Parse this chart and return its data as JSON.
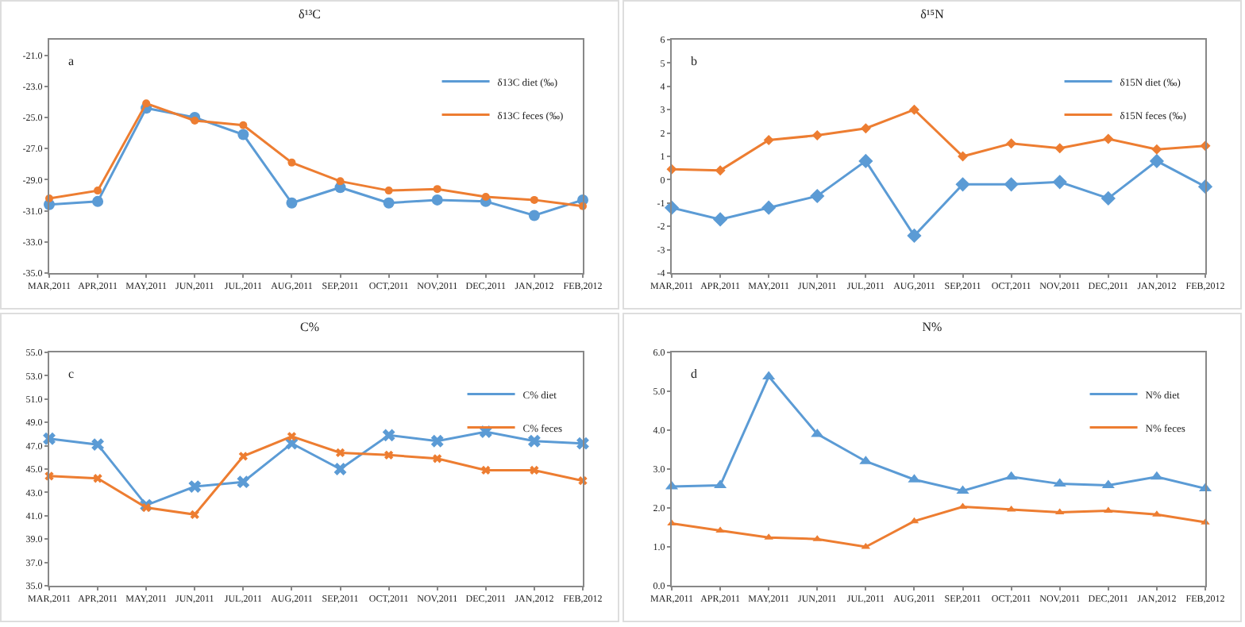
{
  "chart_data": [
    {
      "type": "line",
      "title": "δ¹³C",
      "annotations": [
        "a"
      ],
      "categories": [
        "MAR,2011",
        "APR,2011",
        "MAY,2011",
        "JUN,2011",
        "JUL,2011",
        "AUG,2011",
        "SEP,2011",
        "OCT,2011",
        "NOV,2011",
        "DEC,2011",
        "JAN,2012",
        "FEB,2012"
      ],
      "series": [
        {
          "name": "δ13C diet (‰)",
          "color": "#5b9bd5",
          "values": [
            -30.6,
            -30.4,
            -24.4,
            -25.0,
            -26.1,
            -30.5,
            -29.5,
            -30.5,
            -30.3,
            -30.4,
            -31.3,
            -30.3
          ]
        },
        {
          "name": "δ13C feces (‰)",
          "color": "#ed7d31",
          "values": [
            -30.2,
            -29.7,
            -24.1,
            -25.2,
            -25.5,
            -27.9,
            -29.1,
            -29.7,
            -29.6,
            -30.1,
            -30.3,
            -30.7
          ]
        }
      ],
      "ylim": [
        -35,
        -20
      ],
      "yticks": [
        {
          "value": -35,
          "label": "-35.0"
        },
        {
          "value": -33,
          "label": "-33.0"
        },
        {
          "value": -31,
          "label": "-31.0"
        },
        {
          "value": -29,
          "label": "-29.0"
        },
        {
          "value": -27,
          "label": "-27.0"
        },
        {
          "value": -25,
          "label": "-25.0"
        },
        {
          "value": -23,
          "label": "-23.0"
        },
        {
          "value": -21,
          "label": "-21.0"
        }
      ],
      "grid": false,
      "legend": "top right",
      "marker": "circle"
    },
    {
      "type": "line",
      "title": "δ¹⁵N",
      "annotations": [
        "b"
      ],
      "categories": [
        "MAR,2011",
        "APR,2011",
        "MAY,2011",
        "JUN,2011",
        "JUL,2011",
        "AUG,2011",
        "SEP,2011",
        "OCT,2011",
        "NOV,2011",
        "DEC,2011",
        "JAN,2012",
        "FEB,2012"
      ],
      "series": [
        {
          "name": "δ15N diet (‰)",
          "color": "#5b9bd5",
          "values": [
            -1.2,
            -1.7,
            -1.2,
            -0.7,
            0.8,
            -2.4,
            -0.2,
            -0.2,
            -0.1,
            -0.8,
            0.8,
            -0.3
          ]
        },
        {
          "name": "δ15N feces (‰)",
          "color": "#ed7d31",
          "values": [
            0.45,
            0.4,
            1.7,
            1.9,
            2.2,
            3.0,
            1.0,
            1.55,
            1.35,
            1.75,
            1.3,
            1.45
          ]
        }
      ],
      "ylim": [
        -4,
        6
      ],
      "yticks": [
        -4,
        -3,
        -2,
        -1,
        0,
        1,
        2,
        3,
        4,
        5,
        6
      ],
      "grid": false,
      "legend": "top right",
      "marker": "diamond"
    },
    {
      "type": "line",
      "title": "C%",
      "annotations": [
        "c"
      ],
      "categories": [
        "MAR,2011",
        "APR,2011",
        "MAY,2011",
        "JUN,2011",
        "JUL,2011",
        "AUG,2011",
        "SEP,2011",
        "OCT,2011",
        "NOV,2011",
        "DEC,2011",
        "JAN,2012",
        "FEB,2012"
      ],
      "series": [
        {
          "name": "C% diet",
          "color": "#5b9bd5",
          "values": [
            47.6,
            47.1,
            41.9,
            43.5,
            43.9,
            47.2,
            45.0,
            47.9,
            47.4,
            48.2,
            47.4,
            47.2
          ]
        },
        {
          "name": "C% feces",
          "color": "#ed7d31",
          "values": [
            44.4,
            44.2,
            41.7,
            41.1,
            46.1,
            47.8,
            46.4,
            46.2,
            45.9,
            44.9,
            44.9,
            44.0
          ]
        }
      ],
      "ylim": [
        35,
        55
      ],
      "yticks": [
        {
          "value": 35,
          "label": "35.0"
        },
        {
          "value": 37,
          "label": "37.0"
        },
        {
          "value": 39,
          "label": "39.0"
        },
        {
          "value": 41,
          "label": "41.0"
        },
        {
          "value": 43,
          "label": "43.0"
        },
        {
          "value": 45,
          "label": "45.0"
        },
        {
          "value": 47,
          "label": "47.0"
        },
        {
          "value": 49,
          "label": "49.0"
        },
        {
          "value": 51,
          "label": "51.0"
        },
        {
          "value": 53,
          "label": "53.0"
        },
        {
          "value": 55,
          "label": "55.0"
        }
      ],
      "grid": false,
      "legend": "top right",
      "marker": "cross"
    },
    {
      "type": "line",
      "title": "N%",
      "annotations": [
        "d"
      ],
      "categories": [
        "MAR,2011",
        "APR,2011",
        "MAY,2011",
        "JUN,2011",
        "JUL,2011",
        "AUG,2011",
        "SEP,2011",
        "OCT,2011",
        "NOV,2011",
        "DEC,2011",
        "JAN,2012",
        "FEB,2012"
      ],
      "series": [
        {
          "name": "N% diet",
          "color": "#5b9bd5",
          "values": [
            2.55,
            2.58,
            5.38,
            3.9,
            3.2,
            2.73,
            2.44,
            2.8,
            2.62,
            2.58,
            2.8,
            2.5
          ]
        },
        {
          "name": "N% feces",
          "color": "#ed7d31",
          "values": [
            1.6,
            1.42,
            1.24,
            1.2,
            1.0,
            1.66,
            2.03,
            1.96,
            1.89,
            1.93,
            1.83,
            1.63
          ]
        }
      ],
      "ylim": [
        0,
        6
      ],
      "yticks": [
        {
          "value": 0,
          "label": "0.0"
        },
        {
          "value": 1,
          "label": "1.0"
        },
        {
          "value": 2,
          "label": "2.0"
        },
        {
          "value": 3,
          "label": "3.0"
        },
        {
          "value": 4,
          "label": "4.0"
        },
        {
          "value": 5,
          "label": "5.0"
        },
        {
          "value": 6,
          "label": "6.0"
        }
      ],
      "grid": false,
      "legend": "top right",
      "marker": "triangle"
    }
  ]
}
